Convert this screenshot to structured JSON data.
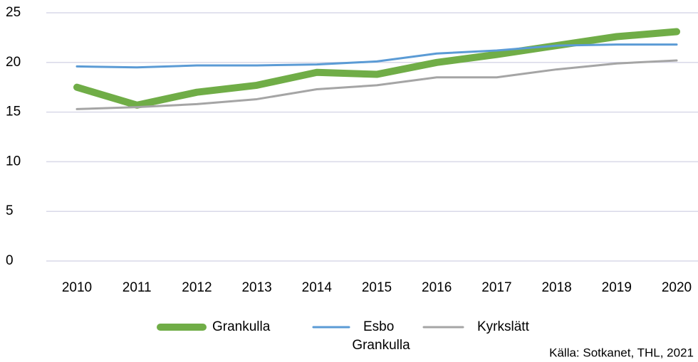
{
  "chart_data": {
    "type": "line",
    "categories": [
      "2010",
      "2011",
      "2012",
      "2013",
      "2014",
      "2015",
      "2016",
      "2017",
      "2018",
      "2019",
      "2020"
    ],
    "series": [
      {
        "name": "Grankulla",
        "color": "#70ad47",
        "values": [
          17.5,
          15.7,
          17.0,
          17.7,
          19.0,
          18.8,
          20.0,
          20.8,
          21.7,
          22.6,
          23.1
        ]
      },
      {
        "name": "Esbo",
        "color": "#5b9bd5",
        "values": [
          19.6,
          19.5,
          19.7,
          19.7,
          19.8,
          20.1,
          20.9,
          21.2,
          21.7,
          21.8,
          21.8
        ]
      },
      {
        "name": "Kyrkslätt",
        "color": "#a5a5a5",
        "values": [
          15.3,
          15.5,
          15.8,
          16.3,
          17.3,
          17.7,
          18.5,
          18.5,
          19.3,
          19.9,
          20.2
        ]
      }
    ],
    "ylim": [
      0,
      25
    ],
    "yticks": [
      0,
      5,
      10,
      15,
      20,
      25
    ],
    "grid": true,
    "legend": "bottom",
    "annotations": [
      "Grankulla",
      "Källa: Sotkanet, THL, 2021"
    ]
  }
}
